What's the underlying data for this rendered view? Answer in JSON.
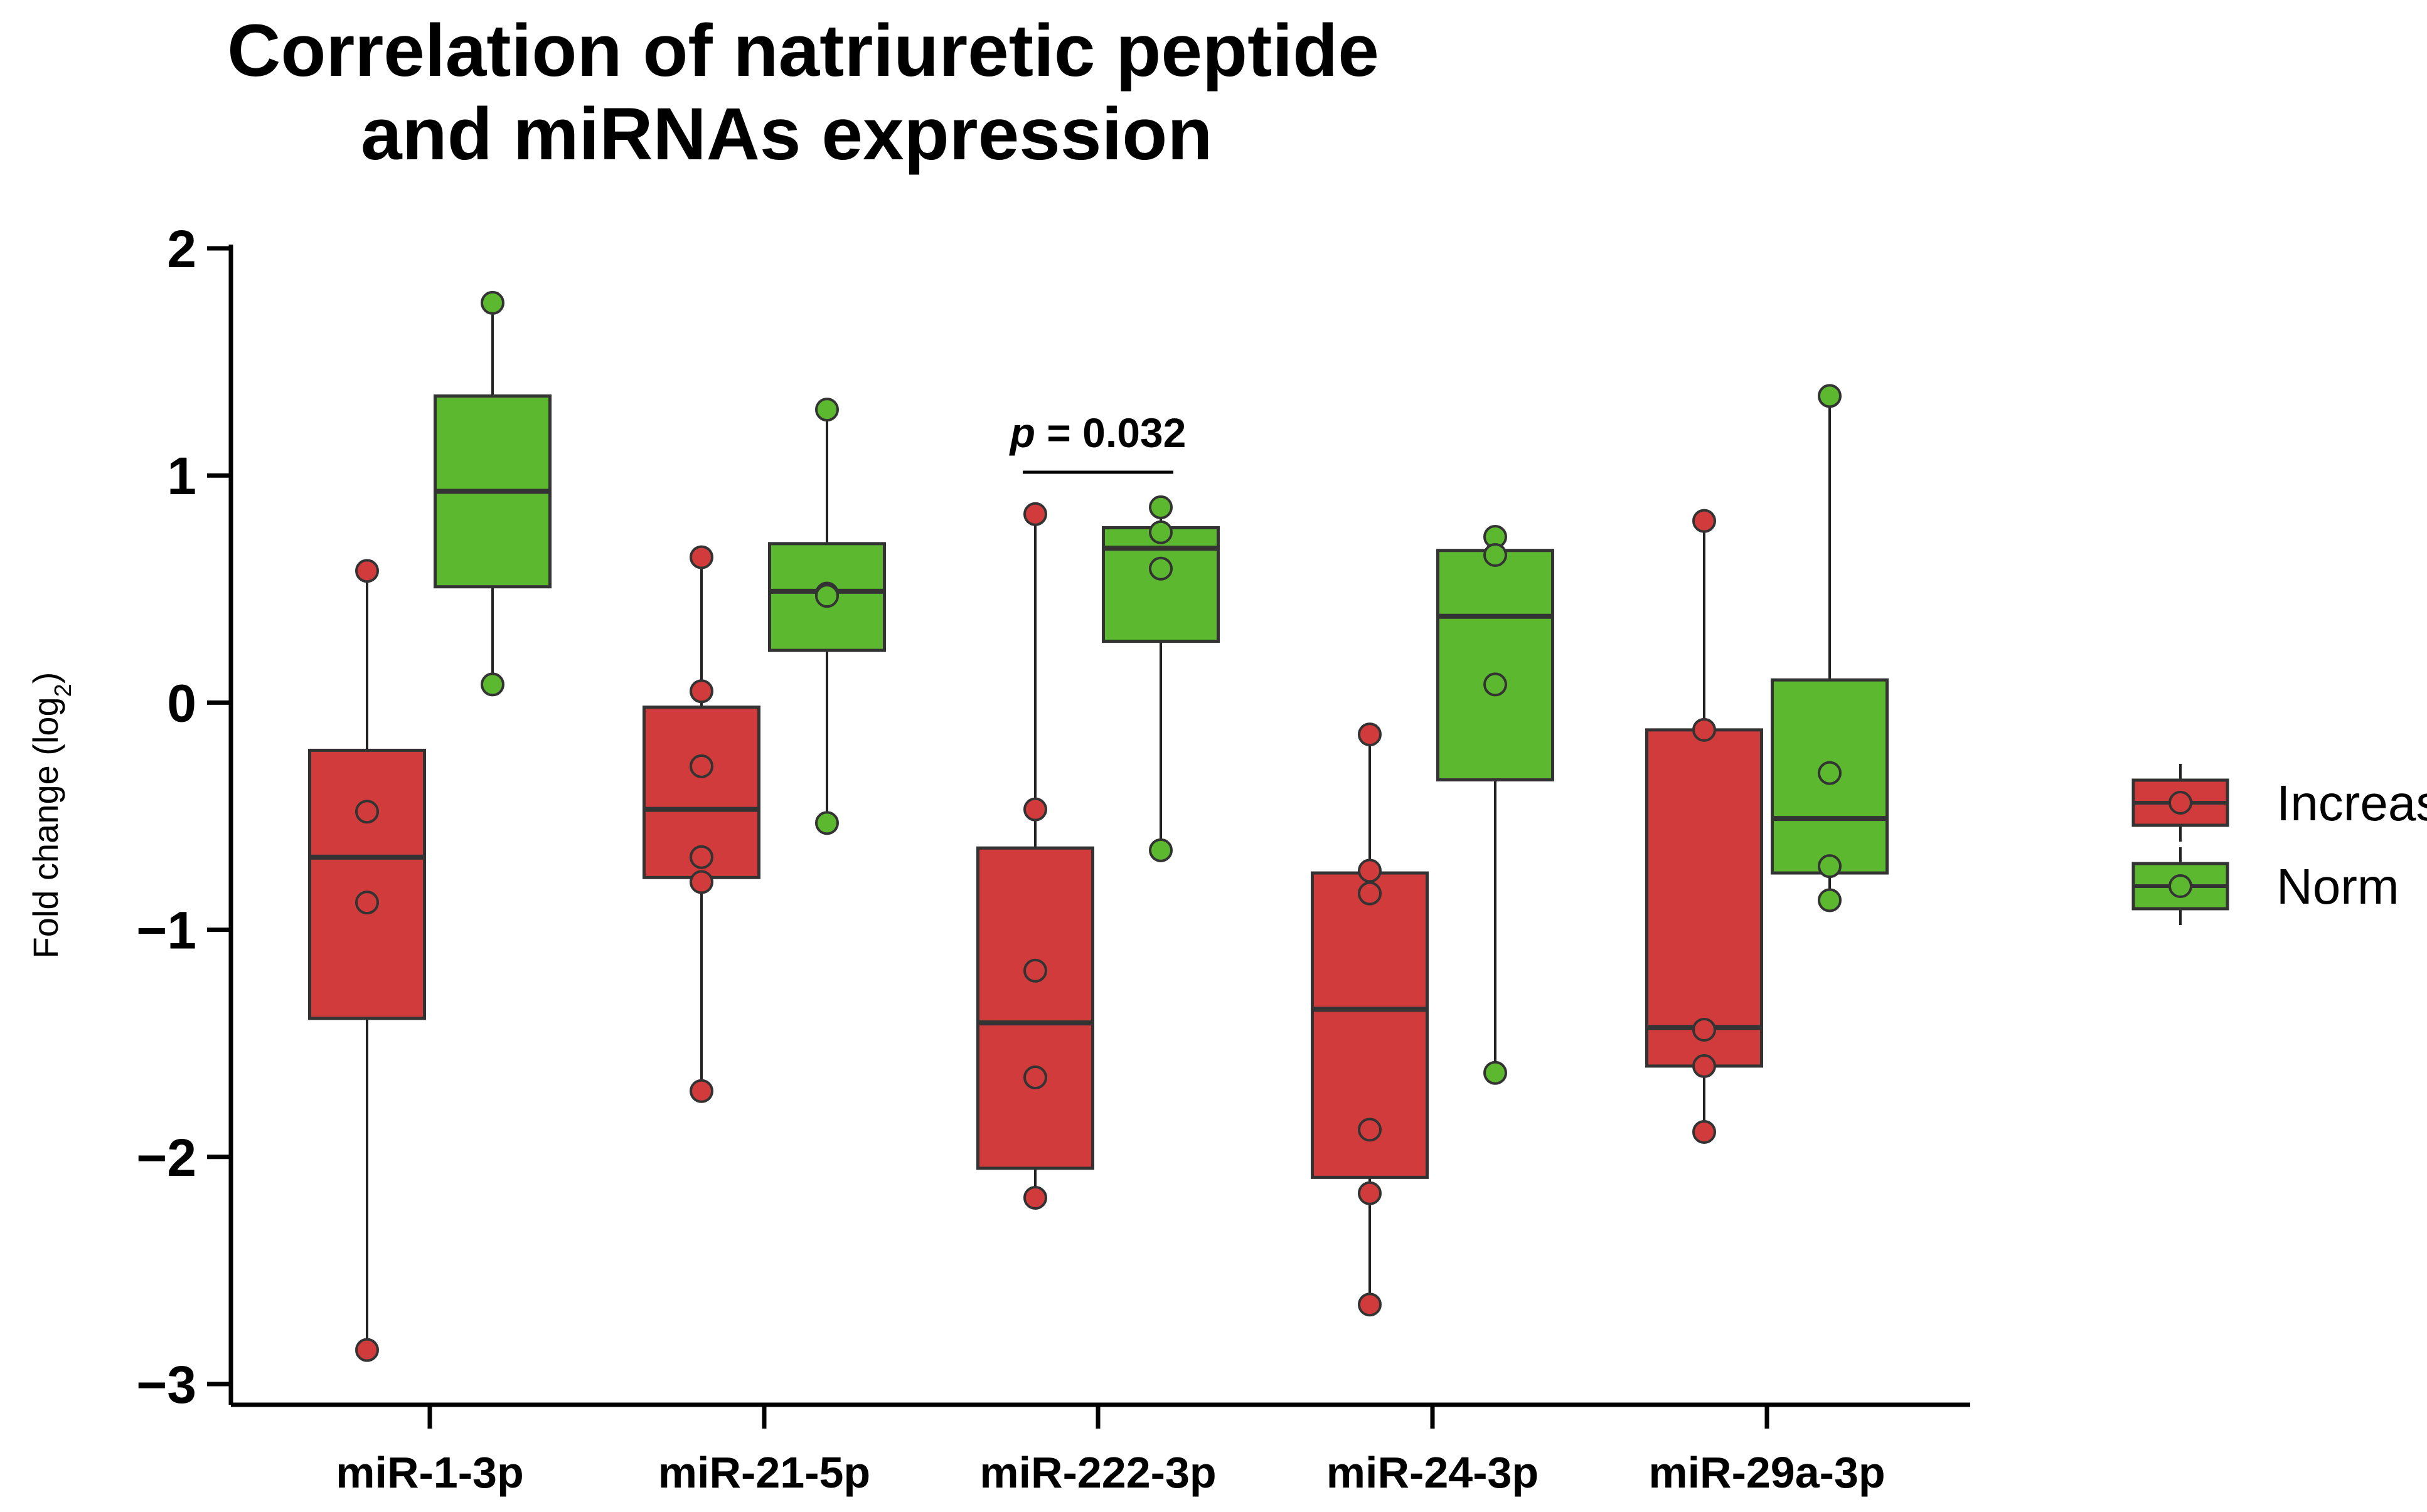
{
  "chart_data": {
    "type": "box",
    "title_lines": [
      "Correlation of natriuretic peptide",
      "and miRNAs expression"
    ],
    "xlabel": "",
    "ylabel": {
      "main": "Fold change (log",
      "sub": "2",
      "close": ")"
    },
    "ylim": [
      -3,
      2
    ],
    "yticks": [
      2,
      1,
      0,
      -1,
      -2,
      -3
    ],
    "ytick_labels": [
      "2",
      "1",
      "0",
      "−1",
      "−2",
      "−3"
    ],
    "categories": [
      "miR-1-3p",
      "miR-21-5p",
      "miR-222-3p",
      "miR-24-3p",
      "miR-29a-3p"
    ],
    "grid": false,
    "legend_position": "right",
    "series": [
      {
        "name": "Increase",
        "color": "#d13b3b",
        "boxes": [
          {
            "min": -2.85,
            "q1": -1.39,
            "median": -0.68,
            "q3": -0.21,
            "max": 0.58,
            "points": [
              0.58,
              -0.48,
              -0.88,
              -2.85
            ]
          },
          {
            "min": -1.71,
            "q1": -0.77,
            "median": -0.47,
            "q3": -0.02,
            "max": 0.64,
            "points": [
              0.64,
              0.05,
              -0.28,
              -0.68,
              -0.79,
              -1.71
            ]
          },
          {
            "min": -2.18,
            "q1": -2.05,
            "median": -1.41,
            "q3": -0.64,
            "max": 0.83,
            "points": [
              0.83,
              -0.47,
              -1.18,
              -1.65,
              -2.18
            ]
          },
          {
            "min": -2.65,
            "q1": -2.09,
            "median": -1.35,
            "q3": -0.75,
            "max": -0.14,
            "points": [
              -0.14,
              -0.74,
              -0.84,
              -1.88,
              -2.16,
              -2.65
            ]
          },
          {
            "min": -1.89,
            "q1": -1.6,
            "median": -1.43,
            "q3": -0.12,
            "max": 0.8,
            "points": [
              0.8,
              -0.12,
              -1.44,
              -1.6,
              -1.89
            ]
          }
        ]
      },
      {
        "name": "Norm",
        "color": "#5cb82e",
        "boxes": [
          {
            "min": 0.08,
            "q1": 0.51,
            "median": 0.93,
            "q3": 1.35,
            "max": 1.76,
            "points": [
              1.76,
              0.08
            ]
          },
          {
            "min": -0.53,
            "q1": 0.23,
            "median": 0.49,
            "q3": 0.7,
            "max": 1.29,
            "points": [
              1.29,
              0.48,
              0.47,
              -0.53
            ]
          },
          {
            "min": -0.65,
            "q1": 0.27,
            "median": 0.68,
            "q3": 0.77,
            "max": 0.86,
            "points": [
              0.86,
              0.75,
              0.59,
              -0.65
            ]
          },
          {
            "min": -1.63,
            "q1": -0.34,
            "median": 0.38,
            "q3": 0.67,
            "max": 0.73,
            "points": [
              0.73,
              0.65,
              0.08,
              -1.63
            ]
          },
          {
            "min": -0.87,
            "q1": -0.75,
            "median": -0.51,
            "q3": 0.1,
            "max": 1.35,
            "points": [
              1.35,
              -0.31,
              -0.72,
              -0.87
            ]
          }
        ]
      }
    ],
    "annotations": [
      {
        "text_italic": "p",
        "text_rest": " = 0.032",
        "category": "miR-222-3p",
        "y": 1.18
      }
    ]
  }
}
